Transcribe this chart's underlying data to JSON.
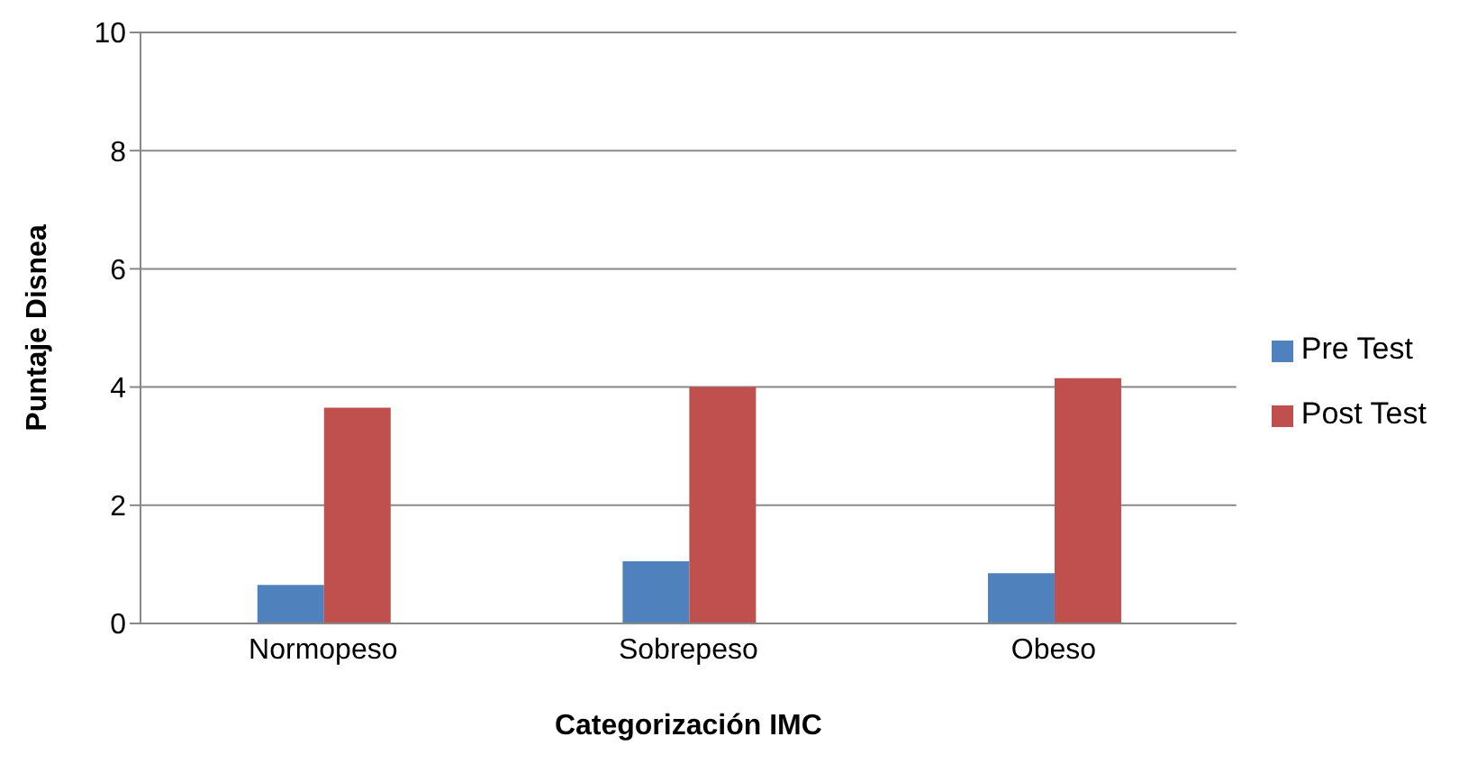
{
  "chart_data": {
    "type": "bar",
    "xlabel": "Categorización IMC",
    "ylabel": "Puntaje Disnea",
    "categories": [
      "Normopeso",
      "Sobrepeso",
      "Obeso"
    ],
    "series": [
      {
        "name": "Pre Test",
        "color": "#4f81bd",
        "values": [
          0.65,
          1.05,
          0.85
        ]
      },
      {
        "name": "Post Test",
        "color": "#c0504d",
        "values": [
          3.65,
          4.0,
          4.15
        ]
      }
    ],
    "ylim": [
      0,
      10
    ],
    "yticks": [
      0,
      2,
      4,
      6,
      8,
      10
    ],
    "grid": "y",
    "legend": "right"
  }
}
